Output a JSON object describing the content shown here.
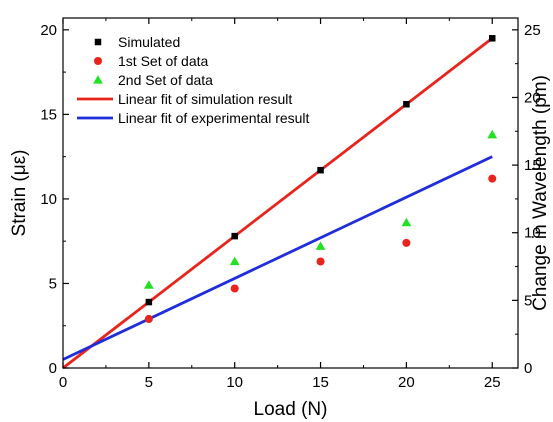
{
  "chart_data": {
    "type": "scatter",
    "title": "",
    "xlabel": "Load (N)",
    "ylabel": "Strain (με)",
    "y2label": "Change in Wavelength (pm)",
    "xlim": [
      0,
      26.5
    ],
    "ylim": [
      0,
      20.7
    ],
    "y2lim": [
      0,
      25.875
    ],
    "xticks": [
      0,
      5,
      10,
      15,
      20,
      25
    ],
    "yticks": [
      0,
      5,
      10,
      15,
      20
    ],
    "y2ticks": [
      0,
      5,
      10,
      15,
      20,
      25
    ],
    "grid": false,
    "legend_position": "top-left",
    "series": [
      {
        "name": "Simulated",
        "kind": "scatter",
        "marker": "square",
        "color": "#000000",
        "x": [
          5,
          10,
          15,
          20,
          25
        ],
        "y": [
          3.9,
          7.8,
          11.7,
          15.6,
          19.5
        ]
      },
      {
        "name": "1st Set of data",
        "kind": "scatter",
        "marker": "circle",
        "color": "#e8241c",
        "x": [
          5,
          10,
          15,
          20,
          25
        ],
        "y": [
          2.9,
          4.7,
          6.3,
          7.4,
          11.2
        ]
      },
      {
        "name": "2nd Set of data",
        "kind": "scatter",
        "marker": "triangle",
        "color": "#22e022",
        "x": [
          5,
          10,
          15,
          20,
          25
        ],
        "y": [
          4.9,
          6.3,
          7.2,
          8.6,
          13.8
        ]
      },
      {
        "name": "Linear fit of simulation result",
        "kind": "line",
        "color": "#e8241c",
        "x": [
          0,
          25
        ],
        "y": [
          0,
          19.5
        ]
      },
      {
        "name": "Linear fit of experimental result",
        "kind": "line",
        "color": "#1f2ddc",
        "x": [
          0,
          25
        ],
        "y": [
          0.5,
          12.5
        ]
      }
    ]
  }
}
